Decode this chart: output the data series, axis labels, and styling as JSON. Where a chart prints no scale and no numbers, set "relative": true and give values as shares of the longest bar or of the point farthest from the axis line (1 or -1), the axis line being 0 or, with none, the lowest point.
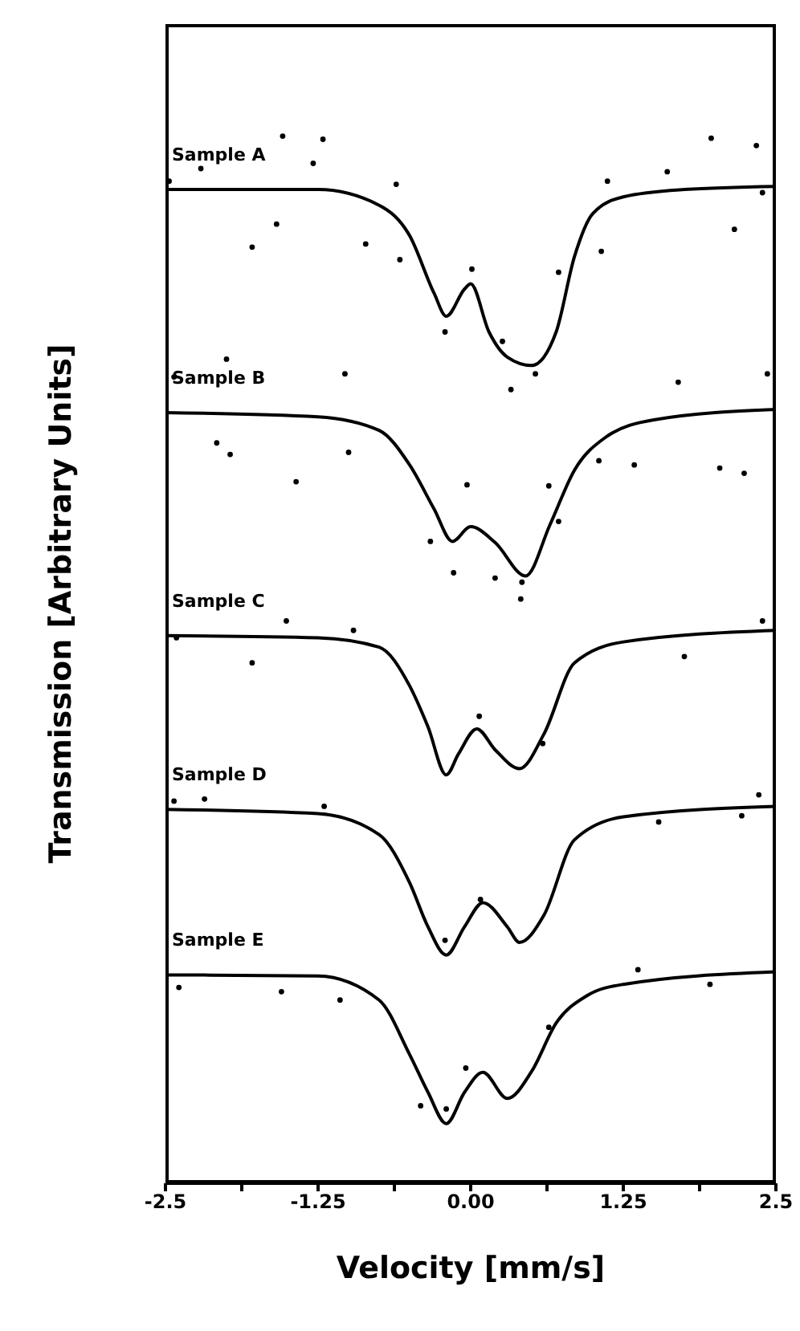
{
  "chart_data": {
    "type": "line",
    "relative": true,
    "xlabel": "Velocity [mm/s]",
    "ylabel": "Transmission [Arbitrary Units]",
    "xlim": [
      -2.5,
      2.5
    ],
    "xticks": [
      -2.5,
      {
        "value": -1.875,
        "label": null
      },
      -1.25,
      {
        "value": -0.625,
        "label": null
      },
      {
        "value": 0,
        "label": "0.00"
      },
      {
        "value": 0.625,
        "label": null
      },
      1.25,
      {
        "value": 1.875,
        "label": null
      },
      2.5
    ],
    "tick_labels": "x",
    "grid": false,
    "legend": false,
    "line_style": "solid",
    "series": [
      {
        "name": "Sample A",
        "marker": "none",
        "color": "#000000",
        "x": [
          -2.5,
          -1.25,
          -0.75,
          -0.5,
          -0.3,
          -0.2,
          -0.05,
          0.0,
          0.15,
          0.3,
          0.5,
          0.7,
          0.85,
          1.0,
          1.25,
          1.75,
          2.5
        ],
        "values": [
          0.949,
          0.949,
          0.934,
          0.905,
          0.85,
          0.828,
          0.854,
          0.859,
          0.813,
          0.789,
          0.781,
          0.813,
          0.885,
          0.926,
          0.942,
          0.949,
          0.952
        ]
      },
      {
        "type": "scatter",
        "marker": "circle",
        "color": "#000000",
        "x": [
          -1.54,
          -1.21,
          -2.47,
          -2.21,
          -1.79,
          -1.59,
          -1.29,
          -0.86,
          -0.61,
          -0.58,
          -0.21,
          0.01,
          0.26,
          0.33,
          0.53,
          0.72,
          1.07,
          1.12,
          1.61,
          1.97,
          2.16,
          2.34,
          2.39
        ],
        "values": [
          1.0,
          0.997,
          0.957,
          0.969,
          0.894,
          0.916,
          0.974,
          0.897,
          0.954,
          0.882,
          0.813,
          0.873,
          0.804,
          0.758,
          0.773,
          0.87,
          0.89,
          0.957,
          0.966,
          0.998,
          0.911,
          0.991,
          0.946
        ]
      },
      {
        "name": "Sample B",
        "marker": "none",
        "color": "#000000",
        "x": [
          -2.5,
          -1.25,
          -0.75,
          -0.5,
          -0.3,
          -0.15,
          0.0,
          0.2,
          0.45,
          0.65,
          0.85,
          1.1,
          1.5,
          2.5
        ],
        "values": [
          0.736,
          0.732,
          0.719,
          0.686,
          0.644,
          0.613,
          0.627,
          0.612,
          0.58,
          0.629,
          0.681,
          0.712,
          0.729,
          0.739
        ]
      },
      {
        "type": "scatter",
        "marker": "circle",
        "color": "#000000",
        "x": [
          -2.0,
          -2.43,
          -1.03,
          -2.08,
          -1.97,
          -1.43,
          -1.0,
          -0.03,
          -0.33,
          -0.14,
          0.2,
          0.41,
          0.42,
          0.64,
          0.72,
          1.05,
          1.34,
          1.7,
          2.04,
          2.24,
          2.43
        ],
        "values": [
          0.787,
          0.77,
          0.773,
          0.707,
          0.696,
          0.67,
          0.698,
          0.667,
          0.613,
          0.583,
          0.578,
          0.558,
          0.574,
          0.666,
          0.632,
          0.69,
          0.686,
          0.765,
          0.683,
          0.678,
          0.773
        ]
      },
      {
        "name": "Sample C",
        "marker": "none",
        "color": "#000000",
        "x": [
          -2.5,
          -1.25,
          -0.75,
          -0.5,
          -0.35,
          -0.2,
          -0.1,
          0.05,
          0.2,
          0.4,
          0.6,
          0.85,
          1.25,
          2.5
        ],
        "values": [
          0.523,
          0.521,
          0.512,
          0.475,
          0.436,
          0.39,
          0.41,
          0.434,
          0.414,
          0.396,
          0.429,
          0.497,
          0.517,
          0.528
        ]
      },
      {
        "type": "scatter",
        "marker": "circle",
        "color": "#000000",
        "x": [
          -1.79,
          -1.51,
          -0.96,
          0.07,
          0.59,
          1.75,
          2.39,
          -2.41
        ],
        "values": [
          0.497,
          0.537,
          0.528,
          0.446,
          0.42,
          0.503,
          0.537,
          0.521
        ]
      },
      {
        "name": "Sample D",
        "marker": "none",
        "color": "#000000",
        "x": [
          -2.5,
          -1.25,
          -0.75,
          -0.5,
          -0.35,
          -0.2,
          -0.05,
          0.1,
          0.3,
          0.4,
          0.6,
          0.85,
          1.25,
          2.5
        ],
        "values": [
          0.357,
          0.353,
          0.333,
          0.287,
          0.245,
          0.218,
          0.245,
          0.268,
          0.245,
          0.23,
          0.256,
          0.328,
          0.35,
          0.36
        ]
      },
      {
        "type": "scatter",
        "marker": "circle",
        "color": "#000000",
        "x": [
          -2.43,
          -2.18,
          -1.2,
          -0.21,
          0.08,
          1.54,
          2.22,
          2.36
        ],
        "values": [
          0.365,
          0.367,
          0.36,
          0.232,
          0.271,
          0.345,
          0.351,
          0.371
        ]
      },
      {
        "name": "Sample E",
        "marker": "none",
        "color": "#000000",
        "x": [
          -2.5,
          -1.25,
          -0.75,
          -0.5,
          -0.35,
          -0.2,
          -0.05,
          0.1,
          0.3,
          0.5,
          0.7,
          0.95,
          1.25,
          2.5
        ],
        "values": [
          0.199,
          0.198,
          0.175,
          0.123,
          0.087,
          0.057,
          0.087,
          0.106,
          0.081,
          0.107,
          0.153,
          0.179,
          0.19,
          0.202
        ]
      },
      {
        "type": "scatter",
        "marker": "circle",
        "color": "#000000",
        "x": [
          -2.39,
          -1.55,
          -1.07,
          -0.41,
          -0.2,
          -0.04,
          0.64,
          1.37,
          1.96
        ],
        "values": [
          0.187,
          0.183,
          0.175,
          0.074,
          0.071,
          0.11,
          0.149,
          0.204,
          0.19
        ]
      }
    ]
  }
}
